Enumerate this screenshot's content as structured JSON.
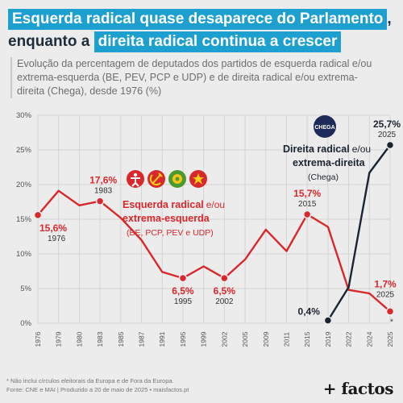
{
  "header": {
    "title_line1": "Esquerda radical quase desaparece do Parlamento",
    "title_line1_suffix": ",",
    "title_line2_prefix": "enquanto a",
    "title_line2_highlight": "direita radical continua a crescer",
    "subtitle": "Evolução da percentagem de deputados dos partidos de esquerda radical e/ou extrema-esquerda (BE, PEV, PCP e UDP) e de direita radical e/ou extrema-direita (Chega), desde 1976 (%)"
  },
  "footer": {
    "note": "* Não inclui círculos eleitorais da Europa e de Fora da Europa.",
    "source": "Fonte: CNE e MAI | Produzido a 20 de maio de 2025 • maisfactos.pt",
    "brand": "+ factos"
  },
  "colors": {
    "left_series": "#d9282b",
    "right_series": "#1b2430",
    "title_highlight": "#1d9fcf",
    "gridline": "#d4d4d4"
  },
  "icons": [
    "be-party-icon",
    "pcp-party-icon",
    "pev-party-icon",
    "udp-party-icon",
    "chega-party-icon"
  ],
  "chart_data": {
    "type": "line",
    "x_ticks": [
      "1976",
      "1979",
      "1980",
      "1983",
      "1985",
      "1987",
      "1991",
      "1995",
      "1999",
      "2002",
      "2005",
      "2009",
      "2011",
      "2015",
      "2019",
      "2022",
      "2024",
      "2025"
    ],
    "y_ticks": [
      "0%",
      "5%",
      "10%",
      "15%",
      "20%",
      "25%",
      "30%"
    ],
    "ylim": [
      0,
      30
    ],
    "grid": true,
    "series": [
      {
        "name": "Esquerda radical e/ou extrema-esquerda",
        "color": "#d9282b",
        "x": [
          1976,
          1979,
          1980,
          1983,
          1985,
          1987,
          1991,
          1995,
          1999,
          2002,
          2005,
          2009,
          2011,
          2015,
          2019,
          2022,
          2024,
          2025
        ],
        "y": [
          15.6,
          19.1,
          17.0,
          17.6,
          15.2,
          12.0,
          7.4,
          6.5,
          8.2,
          6.5,
          9.2,
          13.5,
          10.4,
          15.7,
          13.9,
          4.8,
          4.3,
          1.7
        ]
      },
      {
        "name": "Direita radical e/ou extrema-direita",
        "color": "#1b2430",
        "x": [
          2019,
          2022,
          2024,
          2025
        ],
        "y": [
          0.4,
          5.2,
          21.7,
          25.7
        ]
      }
    ],
    "annotations": {
      "left": [
        {
          "value": "15,6%",
          "year": "1976"
        },
        {
          "value": "17,6%",
          "year": "1983"
        },
        {
          "value": "6,5%",
          "year": "1995"
        },
        {
          "value": "6,5%",
          "year": "2002"
        },
        {
          "value": "15,7%",
          "year": "2015"
        },
        {
          "value": "1,7%",
          "year": "2025"
        }
      ],
      "right": [
        {
          "value": "0,4%",
          "year": ""
        },
        {
          "value": "25,7%",
          "year": "2025"
        }
      ],
      "year_marker": "*"
    },
    "legend": {
      "left_bold": "Esquerda radical",
      "left_normal": "e/ou",
      "left_line2": "extrema-esquerda",
      "left_parties": "(BE, PCP, PEV e UDP)",
      "right_bold": "Direita radical",
      "right_normal": "e/ou",
      "right_line2": "extrema-direita",
      "right_parties": "(Chega)",
      "chega_logo_text": "CHEGA"
    }
  }
}
